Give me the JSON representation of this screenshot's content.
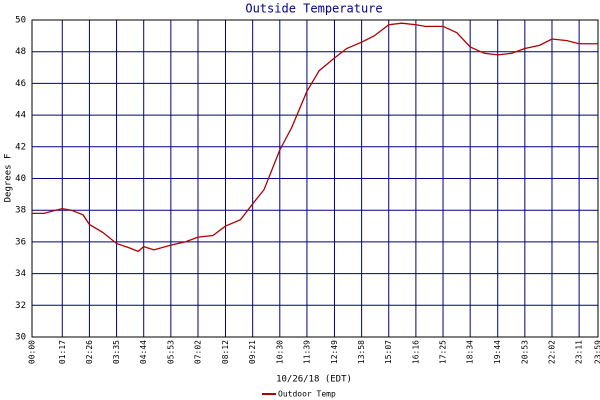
{
  "chart_data": {
    "type": "line",
    "title": "Outside Temperature",
    "x_label": "10/26/18 (EDT)",
    "y_label": "Degrees F",
    "xlim": [
      0,
      1439
    ],
    "ylim": [
      30,
      50
    ],
    "yticks": [
      30,
      32,
      34,
      36,
      38,
      40,
      42,
      44,
      46,
      48,
      50
    ],
    "xticks": [
      {
        "value": 0,
        "label": "00:00"
      },
      {
        "value": 77,
        "label": "01:17"
      },
      {
        "value": 146,
        "label": "02:26"
      },
      {
        "value": 215,
        "label": "03:35"
      },
      {
        "value": 284,
        "label": "04:44"
      },
      {
        "value": 353,
        "label": "05:53"
      },
      {
        "value": 422,
        "label": "07:02"
      },
      {
        "value": 492,
        "label": "08:12"
      },
      {
        "value": 561,
        "label": "09:21"
      },
      {
        "value": 630,
        "label": "10:30"
      },
      {
        "value": 699,
        "label": "11:39"
      },
      {
        "value": 769,
        "label": "12:49"
      },
      {
        "value": 838,
        "label": "13:58"
      },
      {
        "value": 907,
        "label": "15:07"
      },
      {
        "value": 976,
        "label": "16:16"
      },
      {
        "value": 1045,
        "label": "17:25"
      },
      {
        "value": 1114,
        "label": "18:34"
      },
      {
        "value": 1184,
        "label": "19:44"
      },
      {
        "value": 1253,
        "label": "20:53"
      },
      {
        "value": 1322,
        "label": "22:02"
      },
      {
        "value": 1391,
        "label": "23:11"
      },
      {
        "value": 1439,
        "label": "23:59"
      }
    ],
    "grid": true,
    "x": [
      0,
      30,
      60,
      77,
      100,
      130,
      146,
      180,
      215,
      250,
      270,
      284,
      310,
      353,
      390,
      422,
      460,
      492,
      530,
      561,
      590,
      630,
      660,
      699,
      730,
      769,
      800,
      838,
      870,
      907,
      940,
      976,
      1000,
      1045,
      1080,
      1114,
      1150,
      1184,
      1220,
      1253,
      1290,
      1322,
      1360,
      1391,
      1439
    ],
    "series": [
      {
        "name": "Outdoor Temp",
        "color": "#b00000",
        "values": [
          37.8,
          37.8,
          38.0,
          38.1,
          38.0,
          37.7,
          37.1,
          36.6,
          35.9,
          35.6,
          35.4,
          35.7,
          35.5,
          35.8,
          36.0,
          36.3,
          36.4,
          37.0,
          37.4,
          38.4,
          39.3,
          41.8,
          43.2,
          45.5,
          46.8,
          47.6,
          48.2,
          48.6,
          49.0,
          49.7,
          49.8,
          49.7,
          49.6,
          49.6,
          49.2,
          48.3,
          47.9,
          47.8,
          47.9,
          48.2,
          48.4,
          48.8,
          48.7,
          48.5,
          48.5
        ]
      }
    ]
  }
}
